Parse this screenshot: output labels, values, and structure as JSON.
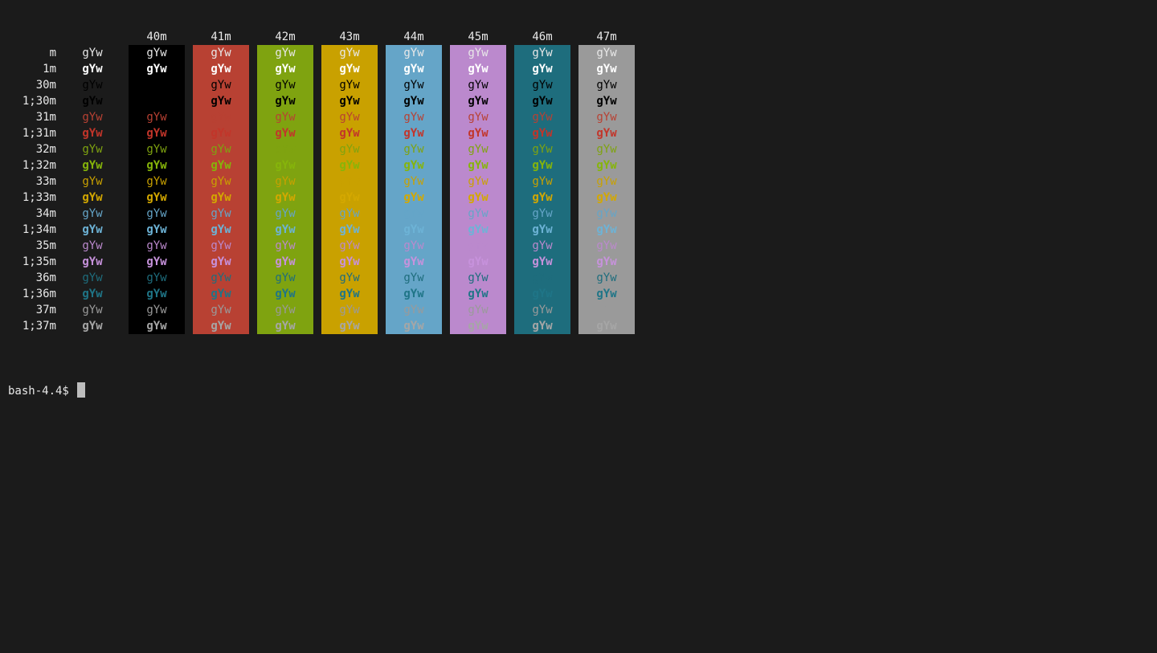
{
  "sample": "gYw",
  "default_fg": "#e8e8e8",
  "bg_columns": [
    {
      "label": "40m",
      "color": "#000000"
    },
    {
      "label": "41m",
      "color": "#b84133"
    },
    {
      "label": "42m",
      "color": "#7fa310"
    },
    {
      "label": "43m",
      "color": "#c9a100"
    },
    {
      "label": "44m",
      "color": "#65a5c8"
    },
    {
      "label": "45m",
      "color": "#bb89cd"
    },
    {
      "label": "46m",
      "color": "#1e6d7d"
    },
    {
      "label": "47m",
      "color": "#9a9a9a"
    }
  ],
  "rows": [
    {
      "label": "m",
      "fg": null,
      "bold": false
    },
    {
      "label": "1m",
      "fg": "#ffffff",
      "bold": true
    },
    {
      "label": "30m",
      "fg": "#000000",
      "bold": false
    },
    {
      "label": "1;30m",
      "fg": "#000000",
      "bold": true
    },
    {
      "label": "31m",
      "fg": "#b84133",
      "bold": false
    },
    {
      "label": "1;31m",
      "fg": "#c2352a",
      "bold": true
    },
    {
      "label": "32m",
      "fg": "#7fa310",
      "bold": false
    },
    {
      "label": "1;32m",
      "fg": "#86b50a",
      "bold": true
    },
    {
      "label": "33m",
      "fg": "#c9a100",
      "bold": false
    },
    {
      "label": "1;33m",
      "fg": "#d4a800",
      "bold": true
    },
    {
      "label": "34m",
      "fg": "#65a5c8",
      "bold": false
    },
    {
      "label": "1;34m",
      "fg": "#6db3d6",
      "bold": true
    },
    {
      "label": "35m",
      "fg": "#bb89cd",
      "bold": false
    },
    {
      "label": "1;35m",
      "fg": "#c792dc",
      "bold": true
    },
    {
      "label": "36m",
      "fg": "#1e6d7d",
      "bold": false
    },
    {
      "label": "1;36m",
      "fg": "#1f7587",
      "bold": true
    },
    {
      "label": "37m",
      "fg": "#9a9a9a",
      "bold": false
    },
    {
      "label": "1;37m",
      "fg": "#a6a6a6",
      "bold": true
    }
  ],
  "prompt": "bash-4.4$"
}
